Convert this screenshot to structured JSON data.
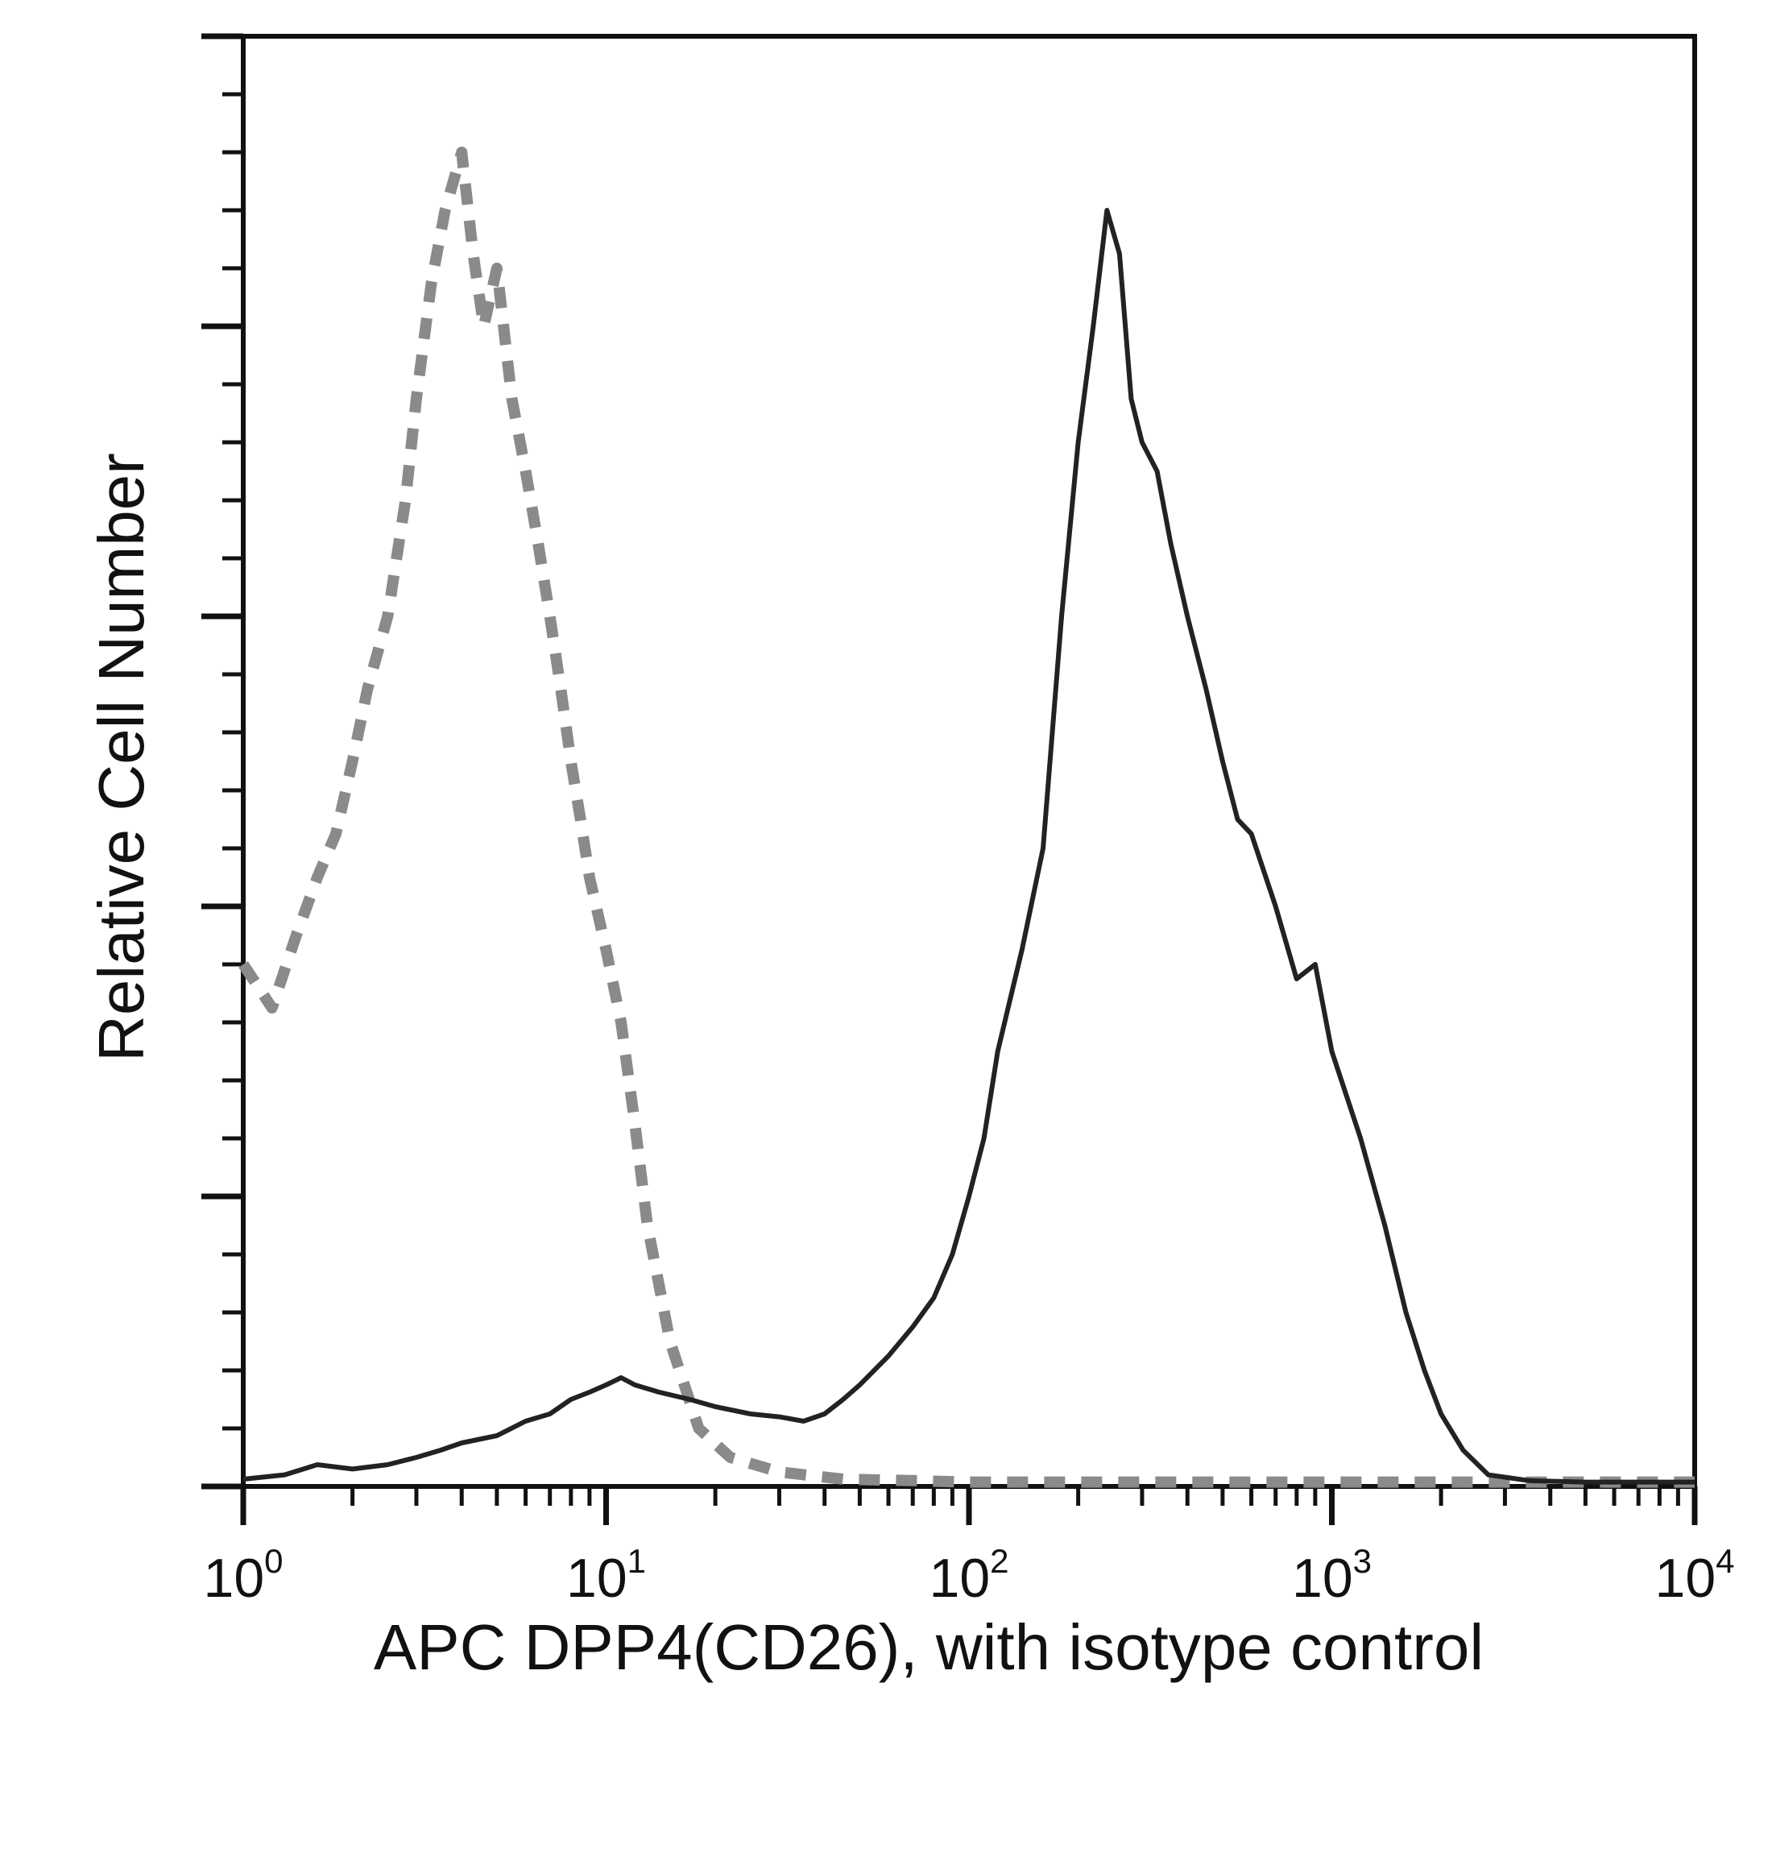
{
  "chart_data": {
    "type": "line",
    "title": "",
    "xlabel": "APC DPP4(CD26), with isotype control",
    "ylabel": "Relative Cell Number",
    "x_scale": "log",
    "xlim": [
      1,
      10000
    ],
    "ylim": [
      0,
      100
    ],
    "x_ticks": [
      {
        "base": "10",
        "exp": "0"
      },
      {
        "base": "10",
        "exp": "1"
      },
      {
        "base": "10",
        "exp": "2"
      },
      {
        "base": "10",
        "exp": "3"
      },
      {
        "base": "10",
        "exp": "4"
      }
    ],
    "y_ticks_labeled": false,
    "grid": false,
    "legend": "none",
    "series": [
      {
        "style": "dashed",
        "color": "#8a8a8a",
        "x": [
          1.0,
          1.2,
          1.4,
          1.6,
          1.8,
          2.0,
          2.2,
          2.5,
          2.8,
          3.0,
          3.3,
          3.6,
          4.0,
          4.3,
          4.6,
          5.0,
          5.5,
          6.0,
          6.5,
          7.0,
          7.5,
          8.0,
          8.5,
          9.0,
          10.0,
          11.0,
          12.0,
          13.0,
          15.0,
          18.0,
          22.0,
          30.0,
          45.0,
          70.0,
          100.0,
          200.0,
          500.0,
          1000.0,
          3000.0,
          10000.0
        ],
        "y": [
          36,
          33,
          38,
          42,
          45,
          50,
          55,
          60,
          68,
          75,
          83,
          88,
          92,
          85,
          80,
          84,
          75,
          70,
          65,
          60,
          55,
          50,
          46,
          42,
          37,
          32,
          25,
          18,
          10,
          4,
          2,
          1,
          0.5,
          0.4,
          0.3,
          0.3,
          0.3,
          0.3,
          0.3,
          0.3
        ]
      },
      {
        "style": "solid",
        "color": "#222222",
        "x": [
          1.0,
          1.3,
          1.6,
          2.0,
          2.5,
          3.0,
          3.5,
          4.0,
          5.0,
          6.0,
          7.0,
          8.0,
          9.0,
          10.0,
          11.0,
          12.0,
          14.0,
          17.0,
          20.0,
          25.0,
          30.0,
          35.0,
          40.0,
          45.0,
          50.0,
          60.0,
          70.0,
          80.0,
          90.0,
          100.0,
          110.0,
          120.0,
          140.0,
          160.0,
          180.0,
          200.0,
          220.0,
          240.0,
          260.0,
          280.0,
          300.0,
          330.0,
          360.0,
          400.0,
          450.0,
          500.0,
          550.0,
          600.0,
          700.0,
          800.0,
          900.0,
          1000.0,
          1200.0,
          1400.0,
          1600.0,
          1800.0,
          2000.0,
          2300.0,
          2700.0,
          3500.0,
          5000.0,
          7000.0,
          10000.0
        ],
        "y": [
          0.5,
          0.8,
          1.5,
          1.2,
          1.5,
          2.0,
          2.5,
          3.0,
          3.5,
          4.5,
          5.0,
          6.0,
          6.5,
          7.0,
          7.5,
          7.0,
          6.5,
          6.0,
          5.5,
          5.0,
          4.8,
          4.5,
          5.0,
          6.0,
          7.0,
          9.0,
          11.0,
          13.0,
          16.0,
          20.0,
          24.0,
          30.0,
          37.0,
          44.0,
          60.0,
          72.0,
          80.0,
          88.0,
          85.0,
          75.0,
          72.0,
          70.0,
          65.0,
          60.0,
          55.0,
          50.0,
          46.0,
          45.0,
          40.0,
          35.0,
          36.0,
          30.0,
          24.0,
          18.0,
          12.0,
          8.0,
          5.0,
          2.5,
          0.8,
          0.4,
          0.3,
          0.3,
          0.3
        ]
      }
    ]
  }
}
